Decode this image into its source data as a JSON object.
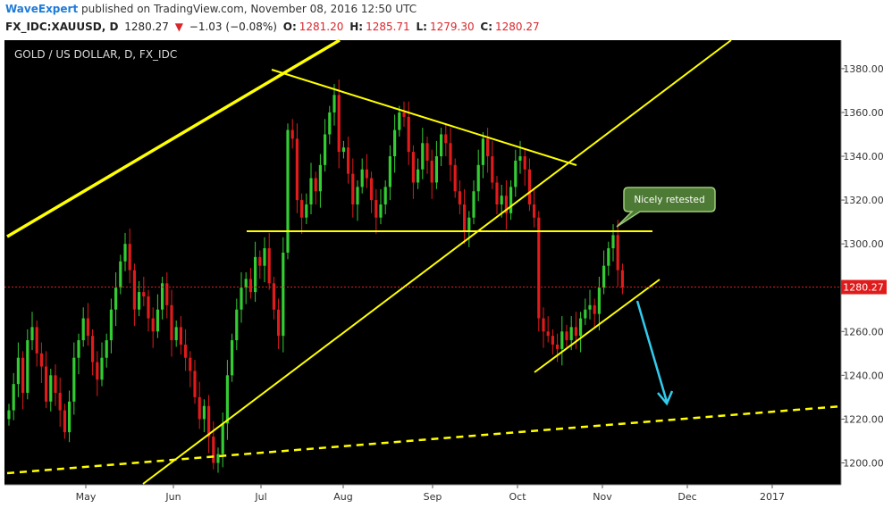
{
  "header": {
    "author": "WaveExpert",
    "published_text": "published on TradingView.com, November 08, 2016 12:50 UTC"
  },
  "quote": {
    "symbol": "FX_IDC:XAUUSD, D",
    "last": "1280.27",
    "arrow": "▼",
    "change": "−1.03 (−0.08%)",
    "open_label": "O:",
    "open": "1281.20",
    "high_label": "H:",
    "high": "1285.71",
    "low_label": "L:",
    "low": "1279.30",
    "close_label": "C:",
    "close": "1280.27"
  },
  "chart_data": {
    "type": "candlestick",
    "title": "GOLD / US DOLLAR, D, FX_IDC",
    "x_tick_labels": [
      "May",
      "Jun",
      "Jul",
      "Aug",
      "Sep",
      "Oct",
      "Nov",
      "Dec",
      "2017"
    ],
    "y_tick_labels": [
      "1200.00",
      "1220.00",
      "1240.00",
      "1260.00",
      "1280.00",
      "1300.00",
      "1320.00",
      "1340.00",
      "1360.00",
      "1380.00"
    ],
    "y_ticks": [
      1200,
      1220,
      1240,
      1260,
      1280,
      1300,
      1320,
      1340,
      1360,
      1380
    ],
    "ylim": [
      1190,
      1393
    ],
    "last_price": 1280.27,
    "last_price_label": "1280.27",
    "grid": false,
    "colors": {
      "background": "#000000",
      "up": "#33cc33",
      "down": "#e01b1b",
      "trendline": "#ffff00",
      "arrow": "#33ccee",
      "last_price": "#e01b1b"
    },
    "annotation": {
      "text": "Nicely retested",
      "color": "#5a8a3a"
    },
    "closes": [
      1224,
      1236,
      1248,
      1232,
      1256,
      1262,
      1250,
      1244,
      1228,
      1240,
      1232,
      1224,
      1214,
      1228,
      1248,
      1256,
      1266,
      1258,
      1246,
      1238,
      1248,
      1256,
      1270,
      1280,
      1292,
      1300,
      1288,
      1270,
      1278,
      1276,
      1266,
      1260,
      1270,
      1282,
      1272,
      1256,
      1262,
      1254,
      1248,
      1242,
      1230,
      1220,
      1226,
      1212,
      1200,
      1204,
      1218,
      1240,
      1256,
      1270,
      1280,
      1284,
      1278,
      1294,
      1290,
      1298,
      1282,
      1270,
      1258,
      1296,
      1352,
      1348,
      1320,
      1312,
      1318,
      1330,
      1324,
      1336,
      1350,
      1360,
      1368,
      1342,
      1344,
      1332,
      1318,
      1326,
      1334,
      1330,
      1320,
      1312,
      1318,
      1326,
      1340,
      1352,
      1360,
      1358,
      1342,
      1328,
      1334,
      1346,
      1338,
      1328,
      1340,
      1350,
      1346,
      1336,
      1324,
      1318,
      1306,
      1312,
      1324,
      1336,
      1348,
      1340,
      1328,
      1318,
      1322,
      1314,
      1326,
      1338,
      1340,
      1334,
      1318,
      1312,
      1266,
      1260,
      1258,
      1254,
      1252,
      1260,
      1256,
      1262,
      1258,
      1266,
      1270,
      1272,
      1268,
      1280,
      1290,
      1298,
      1304,
      1288,
      1280
    ]
  }
}
